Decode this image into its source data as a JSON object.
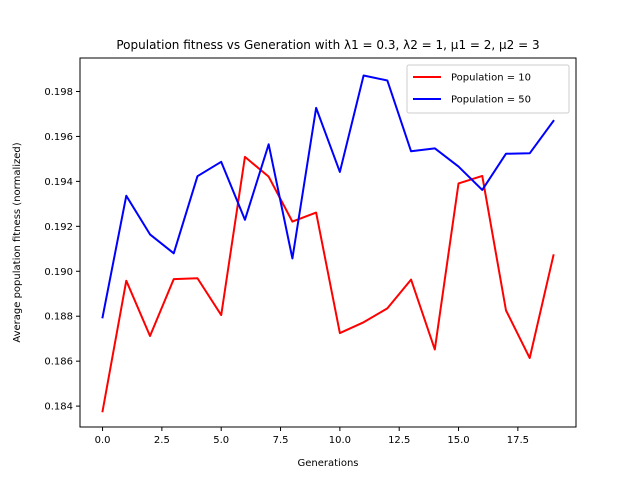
{
  "chart_data": {
    "type": "line",
    "title": "Population fitness vs Generation with λ1 = 0.3, λ2 = 1, μ1 = 2, μ2 = 3",
    "xlabel": "Generations",
    "ylabel": "Average population fitness (normalized)",
    "xlim": [
      -0.95,
      19.95
    ],
    "ylim": [
      0.18307,
      0.19949
    ],
    "x_ticks": [
      0.0,
      2.5,
      5.0,
      7.5,
      10.0,
      12.5,
      15.0,
      17.5
    ],
    "x_tick_labels": [
      "0.0",
      "2.5",
      "5.0",
      "7.5",
      "10.0",
      "12.5",
      "15.0",
      "17.5"
    ],
    "y_ticks": [
      0.184,
      0.186,
      0.188,
      0.19,
      0.192,
      0.194,
      0.196,
      0.198
    ],
    "y_tick_labels": [
      "0.184",
      "0.186",
      "0.188",
      "0.190",
      "0.192",
      "0.194",
      "0.196",
      "0.198"
    ],
    "grid": false,
    "legend_position": "top-right",
    "x": [
      0,
      1,
      2,
      3,
      4,
      5,
      6,
      7,
      8,
      9,
      10,
      11,
      12,
      13,
      14,
      15,
      16,
      17,
      18,
      19
    ],
    "series": [
      {
        "name": "Population = 10",
        "color": "#ff0000",
        "values": [
          0.18377,
          0.18958,
          0.18712,
          0.18965,
          0.18969,
          0.18805,
          0.19509,
          0.19421,
          0.19221,
          0.19261,
          0.18725,
          0.18773,
          0.18835,
          0.18963,
          0.18652,
          0.19391,
          0.19424,
          0.18826,
          0.18614,
          0.19071
        ]
      },
      {
        "name": "Population = 50",
        "color": "#0000ff",
        "values": [
          0.18795,
          0.19336,
          0.19164,
          0.1908,
          0.19423,
          0.19487,
          0.19229,
          0.19565,
          0.19057,
          0.19727,
          0.19442,
          0.19871,
          0.19849,
          0.19534,
          0.19547,
          0.19466,
          0.19362,
          0.19523,
          0.19525,
          0.19669
        ]
      }
    ]
  }
}
